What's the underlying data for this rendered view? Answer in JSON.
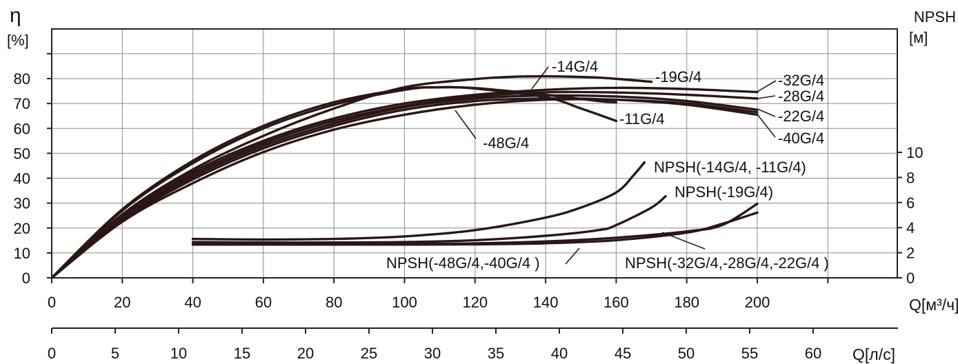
{
  "chart_data": {
    "type": "line",
    "title": "",
    "x_axis_top": {
      "ticks": [
        "0",
        "20",
        "40",
        "60",
        "80",
        "100",
        "120",
        "140",
        "160",
        "180",
        "200"
      ],
      "label": "Q[м³/ч]",
      "range": [
        0,
        240
      ]
    },
    "x_axis_bottom": {
      "ticks": [
        "0",
        "5",
        "10",
        "15",
        "20",
        "25",
        "30",
        "35",
        "40",
        "45",
        "50",
        "55",
        "60"
      ],
      "label": "Q[л/с]",
      "range": [
        0,
        66.67
      ]
    },
    "y_left": {
      "symbol": "η",
      "unit": "[%]",
      "ticks": [
        "0",
        "10",
        "20",
        "30",
        "40",
        "50",
        "60",
        "70",
        "80"
      ],
      "range": [
        0,
        100
      ]
    },
    "y_right": {
      "symbol": "NPSH",
      "unit": "[м]",
      "ticks": [
        "0",
        "2",
        "4",
        "6",
        "8",
        "10"
      ],
      "range": [
        0,
        20
      ]
    },
    "grid": true,
    "efficiency_series": [
      {
        "name": "-14G/4",
        "x": [
          0,
          20,
          40,
          60,
          80,
          100,
          110,
          120,
          140,
          155,
          160
        ],
        "y": [
          0,
          27.5,
          47,
          61,
          70.5,
          75.8,
          76.5,
          76.2,
          73.5,
          71,
          70.5
        ]
      },
      {
        "name": "-11G/4",
        "x": [
          0,
          20,
          40,
          60,
          80,
          100,
          110,
          120,
          140,
          150,
          160
        ],
        "y": [
          0,
          27,
          46,
          60,
          69.5,
          75.5,
          76.5,
          76,
          72.5,
          68,
          63
        ]
      },
      {
        "name": "-19G/4",
        "x": [
          0,
          20,
          40,
          60,
          80,
          100,
          120,
          130,
          140,
          155,
          170
        ],
        "y": [
          0,
          25.5,
          43.5,
          57,
          68,
          76.5,
          79.8,
          80.7,
          80.9,
          80.4,
          78.7
        ]
      },
      {
        "name": "-32G/4",
        "x": [
          0,
          20,
          40,
          60,
          80,
          100,
          120,
          140,
          160,
          180,
          200
        ],
        "y": [
          0,
          24.5,
          42.5,
          55,
          64,
          70,
          73.5,
          75.5,
          76.3,
          75.8,
          74.6
        ]
      },
      {
        "name": "-28G/4",
        "x": [
          0,
          20,
          40,
          60,
          80,
          100,
          120,
          140,
          160,
          180,
          200
        ],
        "y": [
          0,
          24,
          41.5,
          54,
          63,
          69,
          72.8,
          74.5,
          74.4,
          73.5,
          72
        ]
      },
      {
        "name": "-22G/4",
        "x": [
          0,
          20,
          40,
          60,
          80,
          100,
          120,
          140,
          160,
          180,
          200
        ],
        "y": [
          0,
          23.5,
          40.5,
          53,
          62,
          68.5,
          72,
          73.2,
          72.8,
          71,
          67.5
        ]
      },
      {
        "name": "-40G/4",
        "x": [
          0,
          20,
          40,
          60,
          80,
          100,
          120,
          140,
          160,
          180,
          200
        ],
        "y": [
          0,
          23,
          39.5,
          52,
          61,
          67.5,
          71,
          72,
          71.5,
          69.5,
          65.5
        ]
      },
      {
        "name": "-48G/4",
        "x": [
          0,
          20,
          40,
          60,
          80,
          100,
          120,
          140,
          160,
          180,
          200
        ],
        "y": [
          0,
          22.5,
          38,
          50.5,
          59.5,
          65.5,
          69.5,
          71.5,
          71.5,
          70,
          66.5
        ]
      }
    ],
    "npsh_series": [
      {
        "name": "NPSH(-14G/4, -11G/4)",
        "x": [
          40,
          60,
          80,
          100,
          120,
          140,
          150,
          160,
          165,
          168
        ],
        "y": [
          3.1,
          3.05,
          3.1,
          3.3,
          3.8,
          4.8,
          5.6,
          6.8,
          8.2,
          9.2
        ]
      },
      {
        "name": "NPSH(-19G/4)",
        "x": [
          40,
          60,
          80,
          100,
          120,
          140,
          155,
          160,
          170,
          174
        ],
        "y": [
          2.85,
          2.82,
          2.82,
          2.85,
          3.0,
          3.35,
          3.8,
          4.2,
          5.6,
          6.5
        ]
      },
      {
        "name": "NPSH(-32G/4,-28G/4,-22G/4 )",
        "x": [
          40,
          60,
          80,
          100,
          120,
          140,
          160,
          180,
          190,
          200
        ],
        "y": [
          2.72,
          2.7,
          2.7,
          2.7,
          2.75,
          2.9,
          3.2,
          3.7,
          4.2,
          5.9
        ]
      },
      {
        "name": "NPSH(-48G/4,-40G/4 )",
        "x": [
          40,
          60,
          80,
          100,
          120,
          140,
          160,
          180,
          190,
          200
        ],
        "y": [
          2.65,
          2.65,
          2.65,
          2.65,
          2.67,
          2.75,
          3.0,
          3.6,
          4.3,
          5.2
        ]
      }
    ]
  }
}
